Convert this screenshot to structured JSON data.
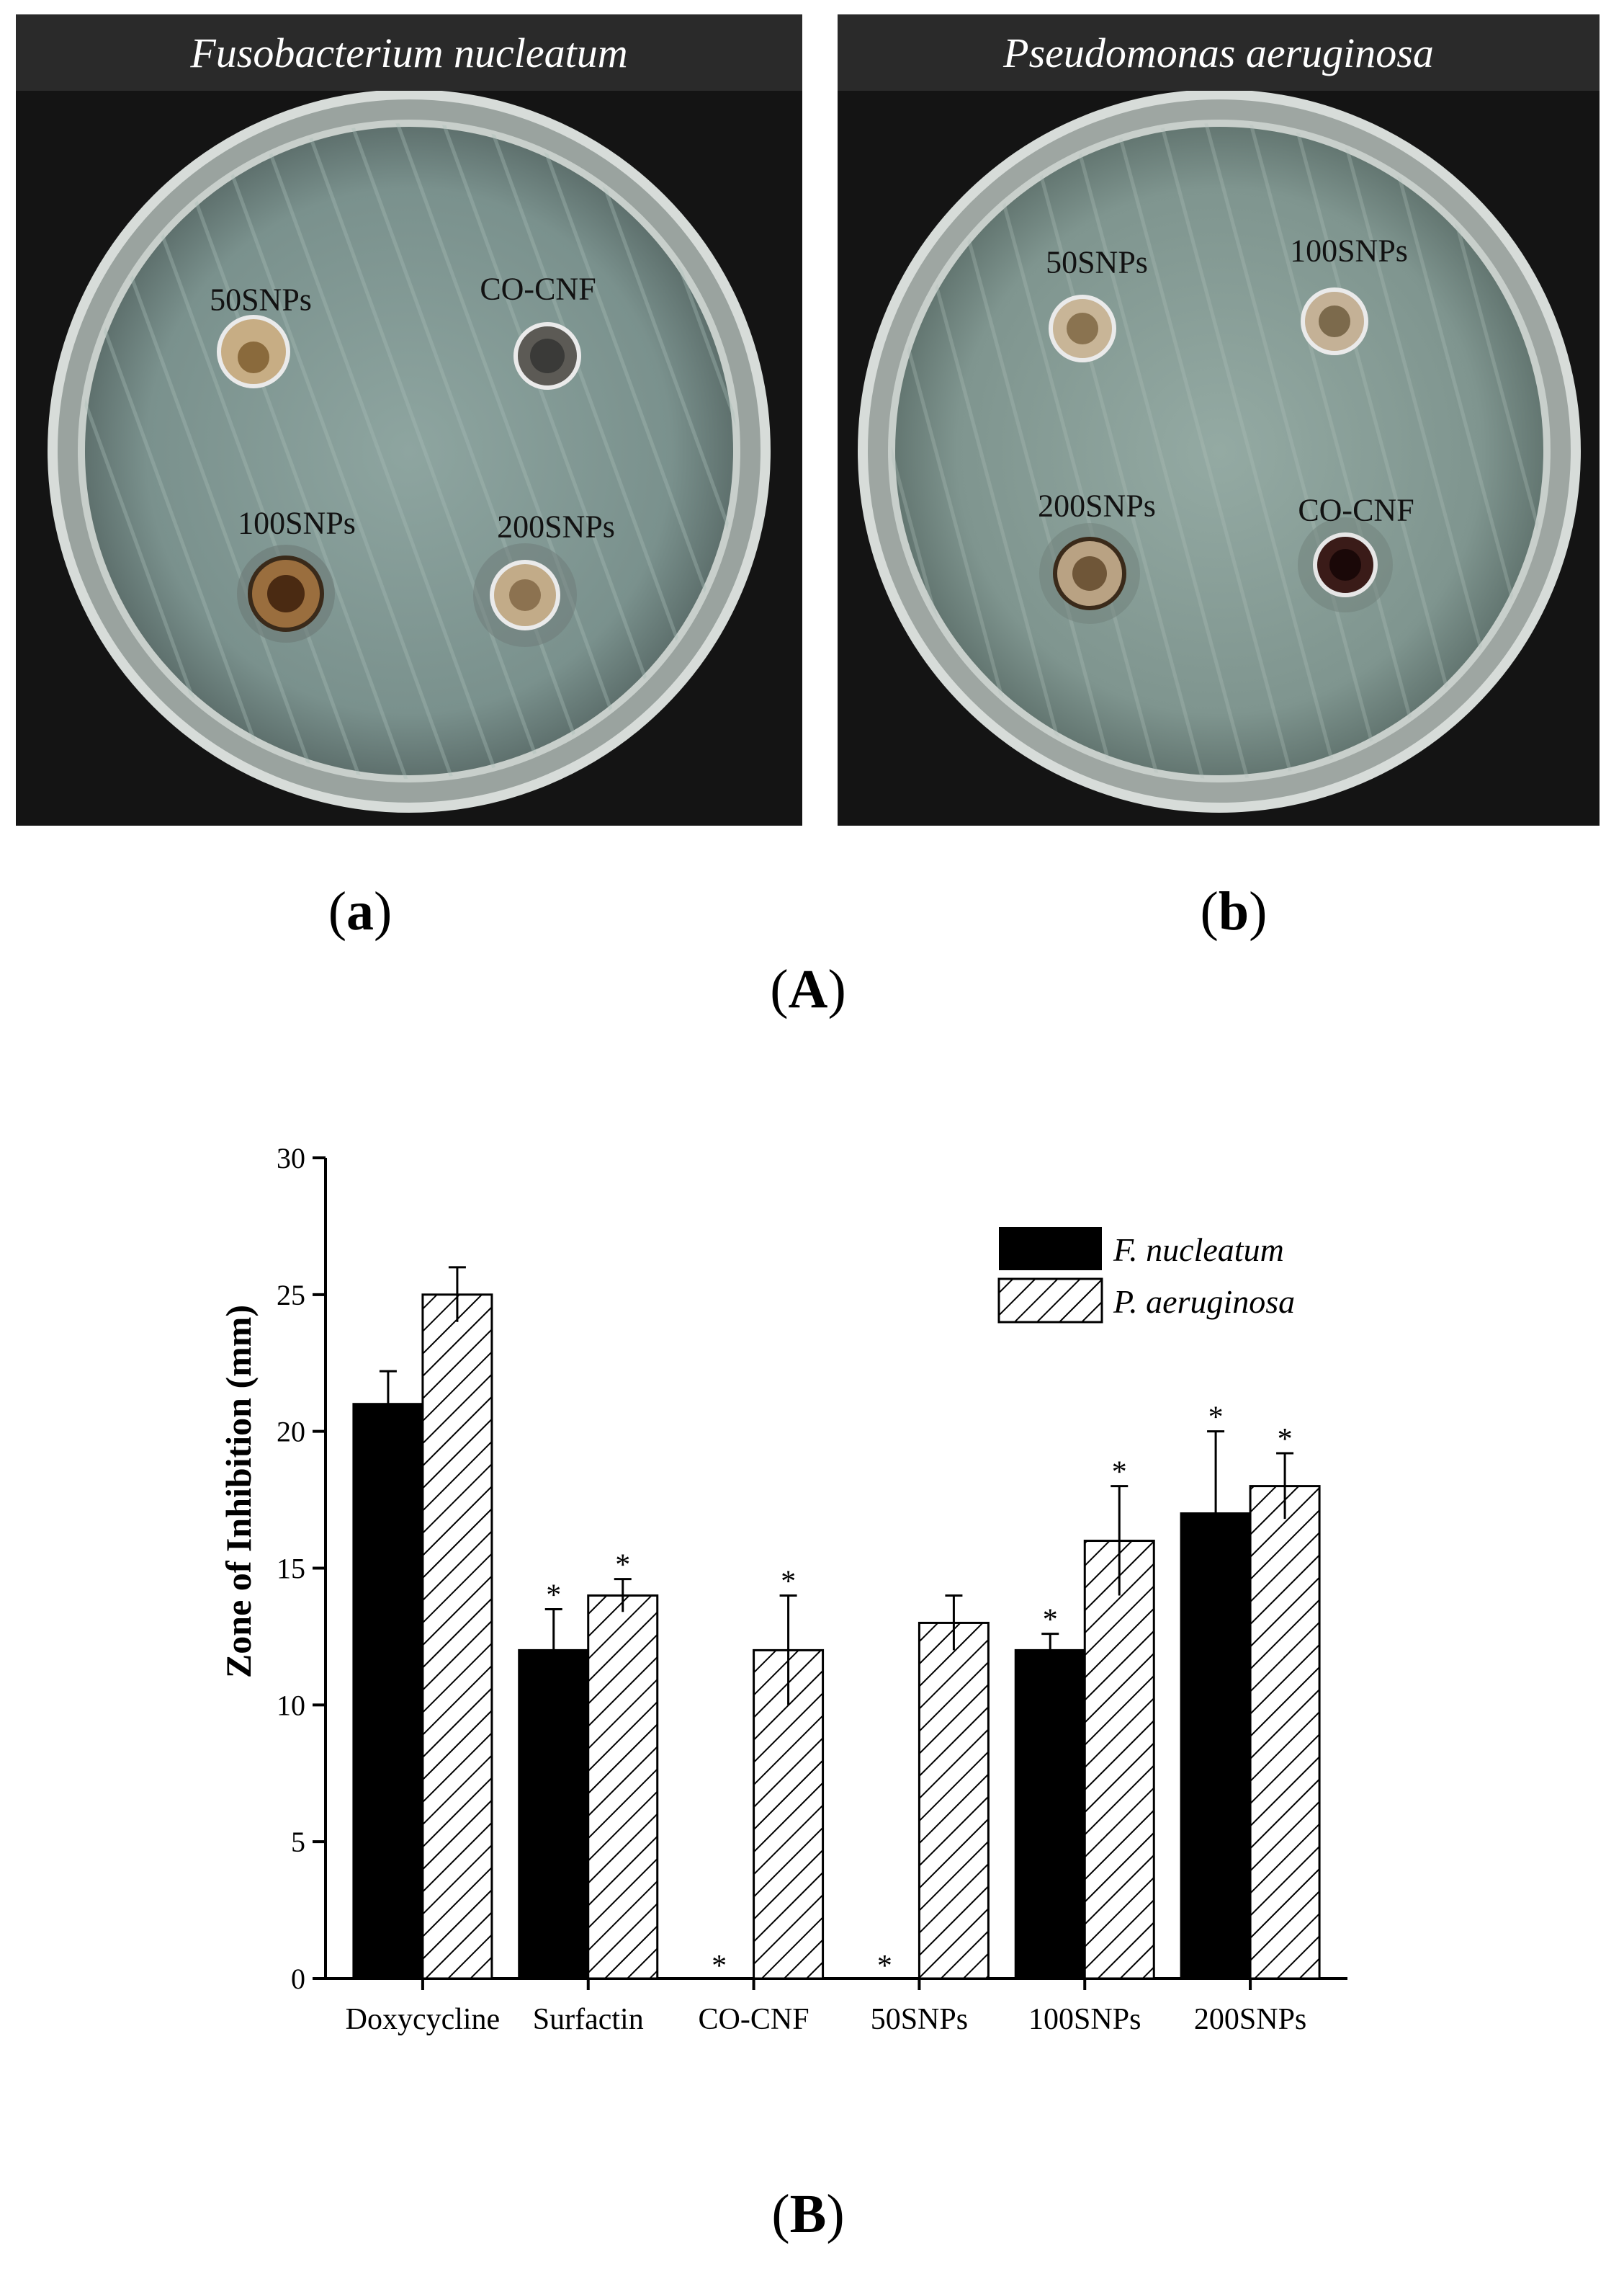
{
  "panel_A": {
    "label_prefix": "(",
    "label_letter": "A",
    "label_suffix": ")",
    "plates": [
      {
        "id": "a",
        "title": "Fusobacterium nucleatum",
        "sub_letter": "a",
        "wells": [
          {
            "label": "50SNPs",
            "color": "#c7ad84",
            "inner": "#8a6a3c"
          },
          {
            "label": "CO-CNF",
            "color": "#5c5a55",
            "inner": "#3a3a38"
          },
          {
            "label": "100SNPs",
            "color": "#9a6e3e",
            "inner": "#4a2a12"
          },
          {
            "label": "200SNPs",
            "color": "#c2ab88",
            "inner": "#8c7250"
          }
        ]
      },
      {
        "id": "b",
        "title": "Pseudomonas aeruginosa",
        "sub_letter": "b",
        "wells": [
          {
            "label": "50SNPs",
            "color": "#c8b597",
            "inner": "#8a7350"
          },
          {
            "label": "100SNPs",
            "color": "#c4b196",
            "inner": "#7c6a4c"
          },
          {
            "label": "200SNPs",
            "color": "#b9a283",
            "inner": "#6f5638"
          },
          {
            "label": "CO-CNF",
            "color": "#3a1b18",
            "inner": "#1a0808"
          }
        ]
      }
    ]
  },
  "panel_B": {
    "label_prefix": "(",
    "label_letter": "B",
    "label_suffix": ")"
  },
  "chart_data": {
    "type": "bar",
    "title": "",
    "xlabel": "",
    "ylabel": "Zone of Inhibition (mm)",
    "ylim": [
      0,
      30
    ],
    "yticks": [
      0,
      5,
      10,
      15,
      20,
      25,
      30
    ],
    "categories": [
      "Doxycycline",
      "Surfactin",
      "CO-CNF",
      "50SNPs",
      "100SNPs",
      "200SNPs"
    ],
    "series": [
      {
        "name": "F. nucleatum",
        "pattern": "solid",
        "color": "#000000",
        "values": [
          21,
          12,
          0,
          0,
          12,
          17
        ],
        "errors": [
          1.2,
          1.5,
          0,
          0,
          0.6,
          3
        ],
        "significant": [
          false,
          true,
          true,
          true,
          true,
          true
        ]
      },
      {
        "name": "P. aeruginosa",
        "pattern": "hatched",
        "color": "#000000",
        "values": [
          25,
          14,
          12,
          13,
          16,
          18
        ],
        "errors": [
          1,
          0.6,
          2,
          1,
          2,
          1.2
        ],
        "significant": [
          false,
          true,
          true,
          false,
          true,
          true
        ]
      }
    ],
    "significance_marker": "*",
    "legend_position": "top-right",
    "grid": false
  }
}
